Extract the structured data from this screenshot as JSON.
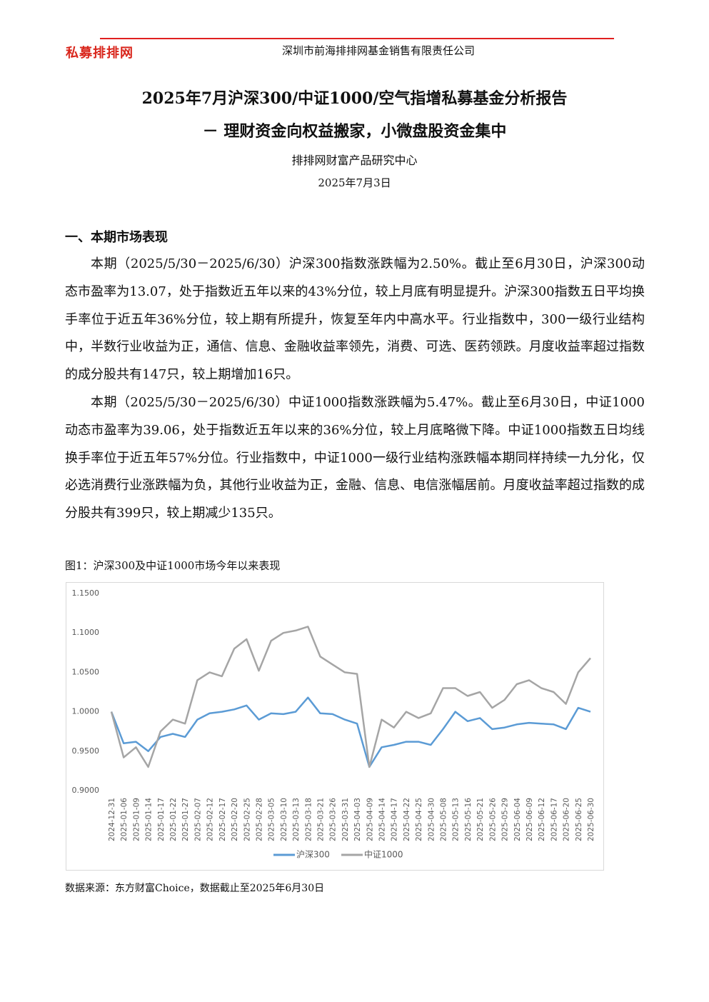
{
  "header": {
    "logo": "私募排排网",
    "company": "深圳市前海排排网基金销售有限责任公司"
  },
  "title": {
    "line1": "2025年7月沪深300/中证1000/空气指增私募基金分析报告",
    "line2": "－ 理财资金向权益搬家，小微盘股资金集中",
    "author": "排排网财富产品研究中心",
    "date": "2025年7月3日"
  },
  "section": {
    "heading": "一、本期市场表现",
    "paragraphs": [
      "本期（2025/5/30－2025/6/30）沪深300指数涨跌幅为2.50%。截止至6月30日，沪深300动态市盈率为13.07，处于指数近五年以来的43%分位，较上月底有明显提升。沪深300指数五日平均换手率位于近五年36%分位，较上期有所提升，恢复至年内中高水平。行业指数中，300一级行业结构中，半数行业收益为正，通信、信息、金融收益率领先，消费、可选、医药领跌。月度收益率超过指数的成分股共有147只，较上期增加16只。",
      "本期（2025/5/30－2025/6/30）中证1000指数涨跌幅为5.47%。截止至6月30日，中证1000动态市盈率为39.06，处于指数近五年以来的36%分位，较上月底略微下降。中证1000指数五日均线换手率位于近五年57%分位。行业指数中，中证1000一级行业结构涨跌幅本期同样持续一九分化，仅必选消费行业涨跌幅为负，其他行业收益为正，金融、信息、电信涨幅居前。月度收益率超过指数的成分股共有399只，较上期减少135只。"
    ]
  },
  "figure": {
    "caption": "图1：沪深300及中证1000市场今年以来表现",
    "source": "数据来源：东方财富Choice，数据截止至2025年6月30日"
  },
  "chart_data": {
    "type": "line",
    "x": [
      "2024-12-31",
      "2025-01-06",
      "2025-01-09",
      "2025-01-14",
      "2025-01-17",
      "2025-01-22",
      "2025-01-27",
      "2025-02-07",
      "2025-02-12",
      "2025-02-17",
      "2025-02-20",
      "2025-02-25",
      "2025-02-28",
      "2025-03-05",
      "2025-03-10",
      "2025-03-13",
      "2025-03-18",
      "2025-03-21",
      "2025-03-26",
      "2025-03-31",
      "2025-04-03",
      "2025-04-09",
      "2025-04-14",
      "2025-04-17",
      "2025-04-22",
      "2025-04-25",
      "2025-04-30",
      "2025-05-08",
      "2025-05-13",
      "2025-05-16",
      "2025-05-21",
      "2025-05-26",
      "2025-05-29",
      "2025-06-04",
      "2025-06-09",
      "2025-06-12",
      "2025-06-17",
      "2025-06-20",
      "2025-06-25",
      "2025-06-30"
    ],
    "series": [
      {
        "name": "沪深300",
        "color": "#5b9bd5",
        "values": [
          1.0,
          0.96,
          0.962,
          0.95,
          0.968,
          0.972,
          0.968,
          0.99,
          0.998,
          1.0,
          1.003,
          1.008,
          0.99,
          0.998,
          0.997,
          1.0,
          1.018,
          0.998,
          0.997,
          0.99,
          0.985,
          0.93,
          0.955,
          0.958,
          0.962,
          0.962,
          0.958,
          0.978,
          1.0,
          0.988,
          0.992,
          0.978,
          0.98,
          0.984,
          0.986,
          0.985,
          0.984,
          0.978,
          1.005,
          1.0
        ]
      },
      {
        "name": "中证1000",
        "color": "#a5a5a5",
        "values": [
          1.0,
          0.942,
          0.955,
          0.93,
          0.975,
          0.99,
          0.985,
          1.04,
          1.05,
          1.045,
          1.08,
          1.092,
          1.052,
          1.09,
          1.1,
          1.103,
          1.108,
          1.07,
          1.06,
          1.05,
          1.048,
          0.93,
          0.99,
          0.98,
          1.0,
          0.992,
          0.998,
          1.03,
          1.03,
          1.02,
          1.025,
          1.005,
          1.015,
          1.035,
          1.04,
          1.03,
          1.025,
          1.01,
          1.05,
          1.068
        ]
      }
    ],
    "ylim": [
      0.9,
      1.15
    ],
    "yticks": [
      {
        "value": 0.9,
        "label": "0.9000"
      },
      {
        "value": 0.95,
        "label": "0.9500"
      },
      {
        "value": 1.0,
        "label": "1.0000"
      },
      {
        "value": 1.05,
        "label": "1.0500"
      },
      {
        "value": 1.1,
        "label": "1.1000"
      },
      {
        "value": 1.15,
        "label": "1.1500"
      }
    ],
    "grid": false,
    "legend": "bottom"
  }
}
